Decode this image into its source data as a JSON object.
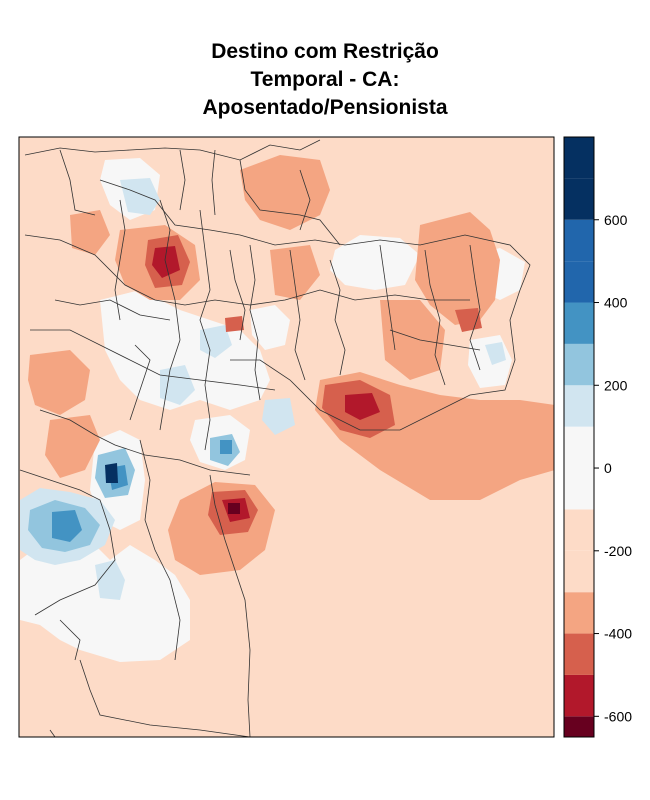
{
  "title": {
    "line1": "Destino com Restrição",
    "line2": "Temporal - CA:",
    "line3": "Aposentado/Pensionista"
  },
  "legend": {
    "breaks": [
      -650,
      -600,
      -500,
      -400,
      -300,
      -200,
      -100,
      0,
      100,
      200,
      300,
      400,
      500,
      600,
      700,
      800
    ],
    "colors": [
      "#67001f",
      "#b2182b",
      "#d6604d",
      "#f4a582",
      "#fddbc7",
      "#fddbc7",
      "#f7f7f7",
      "#f7f7f7",
      "#d1e5f0",
      "#92c5de",
      "#4393c3",
      "#2166ac",
      "#2166ac",
      "#053061",
      "#053061"
    ],
    "tick_labels": [
      "600",
      "400",
      "200",
      "0",
      "-200",
      "-400",
      "-600"
    ],
    "tick_values": [
      600,
      400,
      200,
      0,
      -200,
      -400,
      -600
    ]
  },
  "map": {
    "background_color": "#fddbc7",
    "region_colors": {
      "very_negative": "#67001f",
      "strong_negative": "#b2182b",
      "negative": "#d6604d",
      "mild_negative": "#f4a582",
      "neutral": "#f7f7f7",
      "mild_positive": "#d1e5f0",
      "positive": "#92c5de",
      "strong_positive": "#4393c3",
      "very_positive": "#053061"
    }
  }
}
